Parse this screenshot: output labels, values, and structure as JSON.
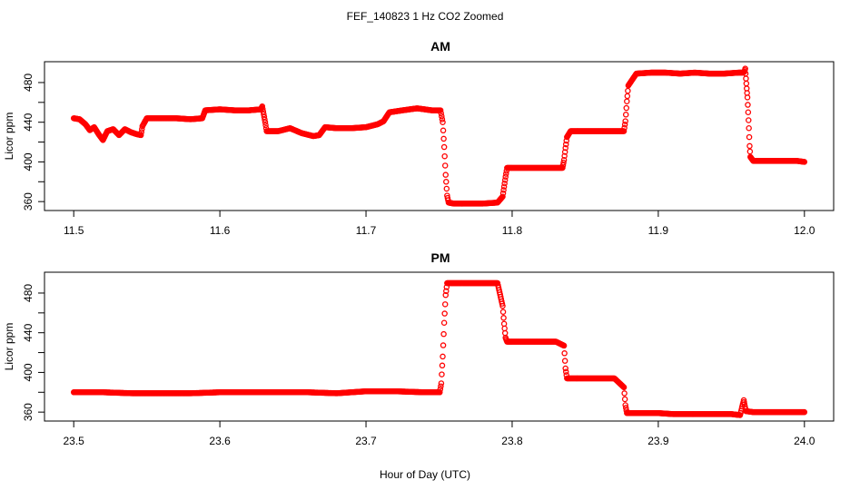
{
  "figure": {
    "title": "FEF_140823  1 Hz CO2 Zoomed",
    "xlabel": "Hour of Day (UTC)",
    "marker_color": "#ff0000"
  },
  "chart_data": [
    {
      "type": "scatter",
      "title": "AM",
      "xlabel": "Hour of Day (UTC)",
      "ylabel": "Licor ppm",
      "xlim": [
        11.48,
        12.02
      ],
      "ylim": [
        351,
        501
      ],
      "xticks": [
        11.5,
        11.6,
        11.7,
        11.8,
        11.9,
        12.0
      ],
      "xtick_labels": [
        "11.5",
        "11.6",
        "11.7",
        "11.8",
        "11.9",
        "12.0"
      ],
      "yticks": [
        360,
        380,
        400,
        420,
        440,
        460,
        480
      ],
      "ytick_labels": [
        "360",
        "",
        "400",
        "",
        "440",
        "",
        "480"
      ],
      "grid": false,
      "series": [
        {
          "color": "#ff0000",
          "marker": "open-circle",
          "x": [
            11.5,
            11.504,
            11.508,
            11.511,
            11.514,
            11.517,
            11.52,
            11.523,
            11.527,
            11.531,
            11.535,
            11.539,
            11.543,
            11.546,
            11.547,
            11.55,
            11.56,
            11.57,
            11.58,
            11.588,
            11.59,
            11.6,
            11.61,
            11.62,
            11.628,
            11.629,
            11.63,
            11.631,
            11.632,
            11.64,
            11.648,
            11.656,
            11.664,
            11.668,
            11.672,
            11.68,
            11.69,
            11.7,
            11.708,
            11.712,
            11.716,
            11.725,
            11.735,
            11.745,
            11.751,
            11.7525,
            11.7535,
            11.7545,
            11.7555,
            11.7565,
            11.76,
            11.77,
            11.78,
            11.79,
            11.7935,
            11.7945,
            11.7955,
            11.7965,
            11.8,
            11.81,
            11.82,
            11.8345,
            11.8355,
            11.8365,
            11.8375,
            11.84,
            11.85,
            11.86,
            11.87,
            11.8765,
            11.8775,
            11.8785,
            11.8795,
            11.885,
            11.895,
            11.905,
            11.915,
            11.925,
            11.935,
            11.945,
            11.955,
            11.958,
            11.959,
            11.9595,
            11.96,
            11.9605,
            11.961,
            11.9615,
            11.962,
            11.9625,
            11.963,
            11.965,
            11.975,
            11.985,
            11.995,
            12.0
          ],
          "y": [
            444,
            443,
            438,
            432,
            435,
            428,
            422,
            431,
            433,
            427,
            433,
            430,
            428,
            427,
            436,
            444,
            444,
            444,
            443,
            444,
            452,
            453,
            452,
            452,
            453,
            456,
            448,
            440,
            431,
            431,
            434,
            429,
            426,
            427,
            435,
            434,
            434,
            435,
            438,
            441,
            450,
            452,
            454,
            452,
            452,
            440,
            415,
            387,
            366,
            359,
            358,
            358,
            358,
            359,
            365,
            375,
            385,
            394,
            394,
            394,
            394,
            394,
            402,
            414,
            425,
            431,
            431,
            431,
            431,
            431,
            441,
            461,
            477,
            489,
            490,
            490,
            489,
            490,
            489,
            489,
            490,
            490,
            491,
            494,
            484,
            474,
            465,
            450,
            434,
            416,
            405,
            401,
            401,
            401,
            401,
            400
          ]
        }
      ]
    },
    {
      "type": "scatter",
      "title": "PM",
      "xlabel": "Hour of Day (UTC)",
      "ylabel": "Licor ppm",
      "xlim": [
        23.48,
        24.02
      ],
      "ylim": [
        351,
        501
      ],
      "xticks": [
        23.5,
        23.6,
        23.7,
        23.8,
        23.9,
        24.0
      ],
      "xtick_labels": [
        "23.5",
        "23.6",
        "23.7",
        "23.8",
        "23.9",
        "24.0"
      ],
      "yticks": [
        360,
        380,
        400,
        420,
        440,
        460,
        480
      ],
      "ytick_labels": [
        "360",
        "",
        "400",
        "",
        "440",
        "",
        "480"
      ],
      "grid": false,
      "series": [
        {
          "color": "#ff0000",
          "marker": "open-circle",
          "x": [
            23.5,
            23.52,
            23.54,
            23.56,
            23.58,
            23.6,
            23.62,
            23.64,
            23.66,
            23.68,
            23.7,
            23.72,
            23.74,
            23.7505,
            23.7515,
            23.7525,
            23.7535,
            23.7545,
            23.7555,
            23.76,
            23.77,
            23.78,
            23.79,
            23.7935,
            23.7945,
            23.7955,
            23.7965,
            23.8,
            23.81,
            23.82,
            23.83,
            23.8355,
            23.8365,
            23.8375,
            23.84,
            23.85,
            23.86,
            23.87,
            23.8765,
            23.8775,
            23.8785,
            23.88,
            23.89,
            23.9,
            23.91,
            23.92,
            23.93,
            23.94,
            23.95,
            23.956,
            23.9585,
            23.959,
            23.96,
            23.965,
            23.975,
            23.985,
            23.995,
            24.0
          ],
          "y": [
            380,
            380,
            379,
            379,
            379,
            380,
            380,
            380,
            380,
            379,
            381,
            381,
            380,
            380,
            389,
            416,
            450,
            478,
            490,
            490,
            490,
            490,
            490,
            467,
            449,
            435,
            431,
            431,
            431,
            431,
            431,
            427,
            404,
            394,
            394,
            394,
            394,
            394,
            385,
            367,
            359,
            359,
            359,
            359,
            358,
            358,
            358,
            358,
            358,
            357,
            372,
            368,
            361,
            360,
            360,
            360,
            360,
            360
          ]
        }
      ]
    }
  ]
}
